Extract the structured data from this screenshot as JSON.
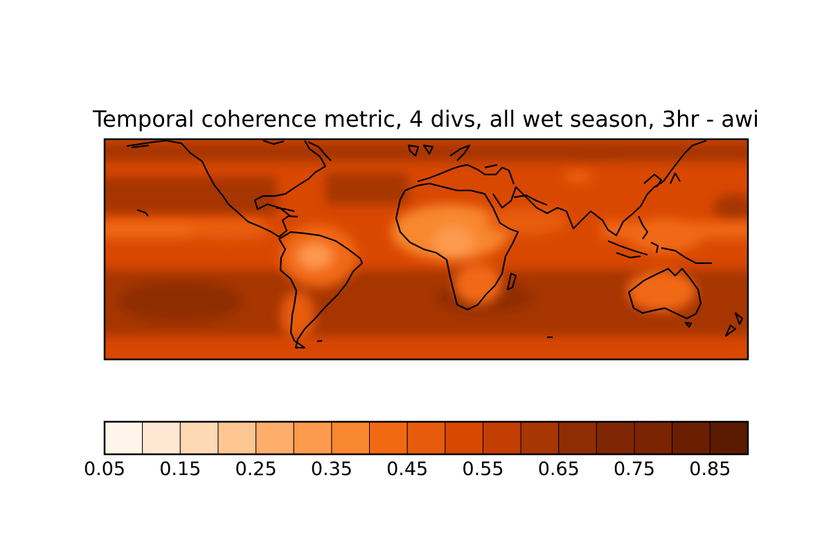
{
  "title": "Temporal coherence metric, 4 divs, all wet season, 3hr - awi",
  "colorbar": {
    "levels": [
      0.05,
      0.1,
      0.15,
      0.2,
      0.25,
      0.3,
      0.35,
      0.4,
      0.45,
      0.5,
      0.55,
      0.6,
      0.65,
      0.7,
      0.75,
      0.8,
      0.85,
      0.9
    ],
    "colors": [
      "#fff5eb",
      "#fee8d3",
      "#fdd9b4",
      "#fdc692",
      "#fdae6b",
      "#fd9a4e",
      "#f8872f",
      "#f16913",
      "#e75c0c",
      "#d94801",
      "#c23e02",
      "#a63603",
      "#8e2d04",
      "#7f2704",
      "#7a2403",
      "#6a1f02",
      "#5a1a02"
    ],
    "tick_labels": [
      "0.05",
      "0.15",
      "0.25",
      "0.35",
      "0.45",
      "0.55",
      "0.65",
      "0.75",
      "0.85"
    ]
  },
  "map": {
    "projection": "PlateCarree",
    "extent_lon": [
      -180,
      180
    ],
    "extent_lat": [
      -60,
      60
    ],
    "field": "temporal coherence metric",
    "features": [
      "coastlines"
    ]
  }
}
